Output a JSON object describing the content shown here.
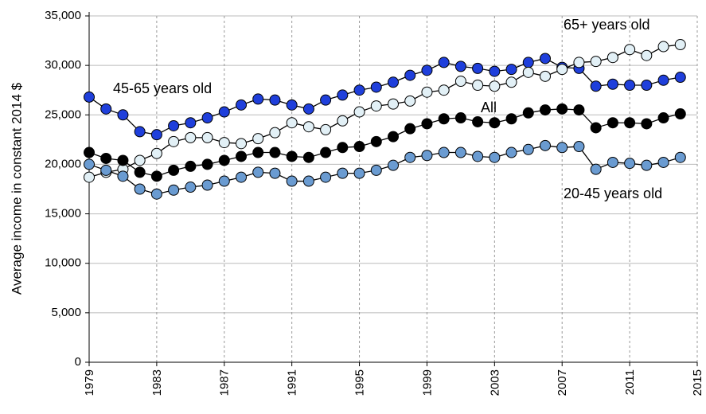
{
  "chart_data": {
    "type": "line",
    "y_label": "Average income in constant 2014 $",
    "x": [
      1979,
      1980,
      1981,
      1982,
      1983,
      1984,
      1985,
      1986,
      1987,
      1988,
      1989,
      1990,
      1991,
      1992,
      1993,
      1994,
      1995,
      1996,
      1997,
      1998,
      1999,
      2000,
      2001,
      2002,
      2003,
      2004,
      2005,
      2006,
      2007,
      2008,
      2009,
      2010,
      2011,
      2012,
      2013,
      2014
    ],
    "series": [
      {
        "name": "45-65 years old",
        "color": "#1f3fdb",
        "values": [
          26800,
          25600,
          25000,
          23300,
          23000,
          23900,
          24200,
          24700,
          25300,
          26000,
          26600,
          26500,
          26000,
          25600,
          26500,
          27000,
          27500,
          27800,
          28300,
          29000,
          29500,
          30300,
          29900,
          29700,
          29400,
          29600,
          30300,
          30700,
          29800,
          29700,
          27900,
          28100,
          28000,
          28000,
          28500,
          28800
        ]
      },
      {
        "name": "65+ years old",
        "color": "#e2f0f6",
        "values": [
          18700,
          19200,
          19500,
          20400,
          21100,
          22300,
          22700,
          22700,
          22200,
          22100,
          22600,
          23200,
          24200,
          23800,
          23500,
          24400,
          25300,
          25900,
          26100,
          26400,
          27300,
          27500,
          28400,
          28000,
          27900,
          28300,
          29300,
          28900,
          29600,
          30300,
          30400,
          30800,
          31600,
          31000,
          31900,
          32100
        ]
      },
      {
        "name": "All",
        "color": "#000000",
        "values": [
          21200,
          20600,
          20400,
          19200,
          18800,
          19400,
          19800,
          20000,
          20400,
          20800,
          21200,
          21200,
          20800,
          20700,
          21200,
          21700,
          21800,
          22300,
          22800,
          23600,
          24100,
          24600,
          24700,
          24300,
          24200,
          24600,
          25200,
          25500,
          25600,
          25500,
          23700,
          24200,
          24200,
          24100,
          24700,
          25100
        ]
      },
      {
        "name": "20-45 years old",
        "color": "#6a9bd1",
        "values": [
          20000,
          19400,
          18800,
          17500,
          17000,
          17400,
          17700,
          17900,
          18300,
          18700,
          19200,
          19100,
          18300,
          18300,
          18700,
          19100,
          19100,
          19400,
          19900,
          20700,
          20900,
          21200,
          21200,
          20800,
          20700,
          21200,
          21500,
          21900,
          21700,
          21800,
          19500,
          20200,
          20100,
          19900,
          20200,
          20700
        ]
      }
    ],
    "xlim": [
      1979,
      2015
    ],
    "xticks": [
      1979,
      1983,
      1987,
      1991,
      1995,
      1999,
      2003,
      2007,
      2011,
      2015
    ],
    "ylim": [
      0,
      35000
    ],
    "yticks": [
      0,
      {
        "value": 5000,
        "label": "5,000"
      },
      {
        "value": 10000,
        "label": "10,000"
      },
      {
        "value": 15000,
        "label": "15,000"
      },
      {
        "value": 20000,
        "label": "20,000"
      },
      {
        "value": 25000,
        "label": "25,000"
      },
      {
        "value": 30000,
        "label": "30,000"
      },
      {
        "value": 35000,
        "label": "35,000"
      }
    ],
    "grid": true
  }
}
